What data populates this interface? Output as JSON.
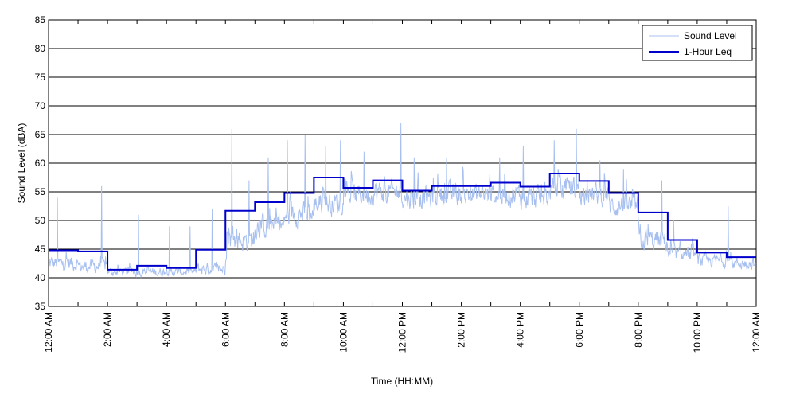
{
  "chart_data": {
    "type": "line",
    "xlabel": "Time (HH:MM)",
    "ylabel": "Sound Level (dBA)",
    "ylim": [
      35,
      85
    ],
    "yticks": [
      35,
      40,
      45,
      50,
      55,
      60,
      65,
      70,
      75,
      80,
      85
    ],
    "xlim": [
      0,
      24
    ],
    "xtick_hours": [
      0,
      2,
      4,
      6,
      8,
      10,
      12,
      14,
      16,
      18,
      20,
      22,
      24
    ],
    "xtick_labels": [
      "12:00 AM",
      "2:00 AM",
      "4:00 AM",
      "6:00 AM",
      "8:00 AM",
      "10:00 AM",
      "12:00 PM",
      "2:00 PM",
      "4:00 PM",
      "6:00 PM",
      "8:00 PM",
      "10:00 PM",
      "12:00 AM"
    ],
    "minor_tick_hours": [
      1,
      3,
      5,
      7,
      9,
      11,
      13,
      15,
      17,
      19,
      21,
      23
    ],
    "grid": "horizontal",
    "legend_position": "top-right",
    "series": [
      {
        "name": "Sound Level",
        "style": "thin-line",
        "color": "#a8c0f0",
        "hourly_base": [
          42.5,
          42.0,
          41.0,
          41.0,
          41.0,
          41.5,
          46.5,
          49.0,
          51.0,
          53.0,
          54.5,
          55.0,
          54.0,
          54.5,
          54.5,
          54.5,
          54.0,
          55.5,
          54.5,
          52.5,
          46.5,
          44.0,
          43.0,
          42.5
        ],
        "hourly_spread": [
          2.0,
          1.8,
          1.2,
          1.2,
          1.0,
          1.6,
          3.0,
          3.2,
          3.2,
          3.0,
          3.0,
          3.0,
          3.0,
          3.0,
          3.0,
          3.0,
          3.0,
          3.0,
          3.0,
          3.0,
          2.8,
          2.0,
          1.8,
          1.6
        ],
        "peaks": [
          [
            0.3,
            54
          ],
          [
            1.8,
            56
          ],
          [
            3.05,
            51
          ],
          [
            4.1,
            49
          ],
          [
            4.8,
            49
          ],
          [
            5.55,
            52
          ],
          [
            6.22,
            66
          ],
          [
            6.8,
            57
          ],
          [
            7.45,
            61
          ],
          [
            8.1,
            64
          ],
          [
            8.7,
            65
          ],
          [
            9.4,
            63
          ],
          [
            9.9,
            64
          ],
          [
            10.7,
            62
          ],
          [
            11.95,
            67
          ],
          [
            12.4,
            61
          ],
          [
            13.5,
            61
          ],
          [
            15.3,
            61
          ],
          [
            16.1,
            63
          ],
          [
            17.15,
            64
          ],
          [
            17.9,
            66
          ],
          [
            18.7,
            60.5
          ],
          [
            19.5,
            59
          ],
          [
            20.8,
            57
          ],
          [
            21.2,
            50
          ],
          [
            23.05,
            52.5
          ]
        ]
      },
      {
        "name": "1-Hour Leq",
        "style": "step",
        "color": "#0000cc",
        "x": [
          0,
          1,
          2,
          3,
          4,
          5,
          6,
          7,
          8,
          9,
          10,
          11,
          12,
          13,
          14,
          15,
          16,
          17,
          18,
          19,
          20,
          21,
          22,
          23
        ],
        "y": [
          44.8,
          44.6,
          41.4,
          42.1,
          41.7,
          44.9,
          51.7,
          53.2,
          54.8,
          57.5,
          55.7,
          57.0,
          55.2,
          56.0,
          56.0,
          56.6,
          55.9,
          58.2,
          56.9,
          54.8,
          51.4,
          46.6,
          44.4,
          43.6
        ]
      }
    ]
  }
}
